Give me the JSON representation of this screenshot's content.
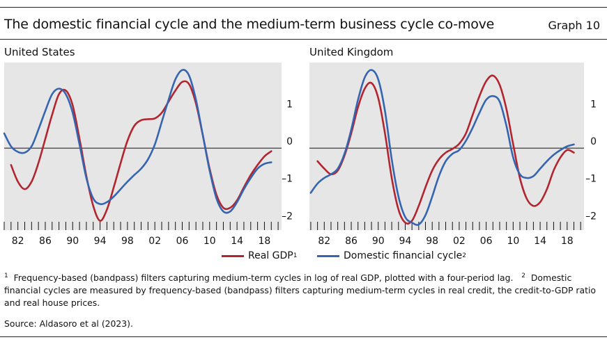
{
  "title": "The domestic financial cycle and the medium-term business cycle co-move",
  "graph_label": "Graph 10",
  "legend": {
    "real_gdp": "Real GDP",
    "real_gdp_note": "1",
    "financial_cycle": "Domestic financial cycle",
    "financial_cycle_note": "2"
  },
  "footnote": {
    "n1": "1",
    "t1": "Frequency-based (bandpass) filters capturing medium-term cycles in log of real GDP, plotted with a four-period lag.",
    "n2": "2",
    "t2": "Domestic financial cycles are measured by frequency-based (bandpass) filters capturing medium-term cycles in real credit, the credit-to-GDP ratio and real house prices."
  },
  "source": "Source: Aldasoro et al (2023).",
  "colors": {
    "real_gdp": "#b3252e",
    "financial_cycle": "#3564b0",
    "background": "#e6e6e6",
    "zero_line": "#111111"
  },
  "chart_data": [
    {
      "type": "line",
      "title": "United States",
      "xlim": [
        1980,
        2020.5
      ],
      "ylim": [
        -2.2,
        2.3
      ],
      "y_ticks": [
        -2,
        -1,
        0,
        1
      ],
      "y_tick_labels": [
        "–2",
        "–1",
        "0",
        "1"
      ],
      "x_tick_labels": [
        {
          "x": 1982,
          "label": "82"
        },
        {
          "x": 1986,
          "label": "86"
        },
        {
          "x": 1990,
          "label": "90"
        },
        {
          "x": 1994,
          "label": "94"
        },
        {
          "x": 1998,
          "label": "98"
        },
        {
          "x": 2002,
          "label": "02"
        },
        {
          "x": 2006,
          "label": "06"
        },
        {
          "x": 2010,
          "label": "10"
        },
        {
          "x": 2014,
          "label": "14"
        },
        {
          "x": 2018,
          "label": "18"
        }
      ],
      "x_minor_start": 1980,
      "x_minor_end": 2020,
      "series": [
        {
          "key": "real_gdp",
          "name": "Real GDP",
          "x": [
            1981,
            1982,
            1983,
            1984,
            1985,
            1986,
            1987,
            1988,
            1989,
            1990,
            1991,
            1992,
            1993,
            1994,
            1995,
            1996,
            1997,
            1998,
            1999,
            2000,
            2001,
            2002,
            2003,
            2004,
            2005,
            2006,
            2007,
            2008,
            2009,
            2010,
            2011,
            2012,
            2013,
            2014,
            2015,
            2016,
            2017,
            2018,
            2019
          ],
          "y": [
            -0.45,
            -0.9,
            -1.1,
            -0.9,
            -0.4,
            0.25,
            0.9,
            1.45,
            1.55,
            1.15,
            0.25,
            -0.75,
            -1.55,
            -1.95,
            -1.65,
            -1.05,
            -0.4,
            0.2,
            0.6,
            0.75,
            0.78,
            0.8,
            0.95,
            1.25,
            1.55,
            1.78,
            1.72,
            1.2,
            0.35,
            -0.55,
            -1.25,
            -1.6,
            -1.6,
            -1.4,
            -1.05,
            -0.72,
            -0.45,
            -0.22,
            -0.08
          ]
        },
        {
          "key": "financial_cycle",
          "name": "Domestic financial cycle",
          "x": [
            1980,
            1981,
            1982,
            1983,
            1984,
            1985,
            1986,
            1987,
            1988,
            1989,
            1990,
            1991,
            1992,
            1993,
            1994,
            1995,
            1996,
            1997,
            1998,
            1999,
            2000,
            2001,
            2002,
            2003,
            2004,
            2005,
            2006,
            2007,
            2008,
            2009,
            2010,
            2011,
            2012,
            2013,
            2014,
            2015,
            2016,
            2017,
            2018,
            2019
          ],
          "y": [
            0.4,
            0.05,
            -0.1,
            -0.12,
            0.05,
            0.5,
            1.0,
            1.45,
            1.6,
            1.45,
            0.95,
            0.1,
            -0.8,
            -1.35,
            -1.5,
            -1.45,
            -1.3,
            -1.1,
            -0.9,
            -0.72,
            -0.55,
            -0.3,
            0.1,
            0.7,
            1.3,
            1.85,
            2.1,
            1.95,
            1.3,
            0.35,
            -0.6,
            -1.35,
            -1.7,
            -1.7,
            -1.45,
            -1.1,
            -0.8,
            -0.55,
            -0.42,
            -0.38
          ]
        }
      ]
    },
    {
      "type": "line",
      "title": "United Kingdom",
      "xlim": [
        1979.8,
        2020.5
      ],
      "ylim": [
        -2.2,
        2.3
      ],
      "y_ticks": [
        -2,
        -1,
        0,
        1
      ],
      "y_tick_labels": [
        "–2",
        "–1",
        "0",
        "1"
      ],
      "x_tick_labels": [
        {
          "x": 1982,
          "label": "82"
        },
        {
          "x": 1986,
          "label": "86"
        },
        {
          "x": 1990,
          "label": "90"
        },
        {
          "x": 1994,
          "label": "94"
        },
        {
          "x": 1998,
          "label": "98"
        },
        {
          "x": 2002,
          "label": "02"
        },
        {
          "x": 2006,
          "label": "06"
        },
        {
          "x": 2010,
          "label": "10"
        },
        {
          "x": 2014,
          "label": "14"
        },
        {
          "x": 2018,
          "label": "18"
        }
      ],
      "x_minor_start": 1980,
      "x_minor_end": 2020,
      "series": [
        {
          "key": "real_gdp",
          "name": "Real GDP",
          "x": [
            1981,
            1982,
            1983,
            1984,
            1985,
            1986,
            1987,
            1988,
            1989,
            1990,
            1991,
            1992,
            1993,
            1994,
            1995,
            1996,
            1997,
            1998,
            1999,
            2000,
            2001,
            2002,
            2003,
            2004,
            2005,
            2006,
            2007,
            2008,
            2009,
            2010,
            2011,
            2012,
            2013,
            2014,
            2015,
            2016,
            2017,
            2018,
            2019
          ],
          "y": [
            -0.35,
            -0.55,
            -0.7,
            -0.6,
            -0.2,
            0.4,
            1.1,
            1.6,
            1.75,
            1.35,
            0.4,
            -0.8,
            -1.65,
            -2.0,
            -1.95,
            -1.55,
            -1.05,
            -0.6,
            -0.3,
            -0.12,
            -0.02,
            0.12,
            0.4,
            0.9,
            1.4,
            1.8,
            1.95,
            1.7,
            1.05,
            0.1,
            -0.8,
            -1.35,
            -1.55,
            -1.45,
            -1.1,
            -0.6,
            -0.25,
            -0.05,
            -0.12
          ]
        },
        {
          "key": "financial_cycle",
          "name": "Domestic financial cycle",
          "x": [
            1980,
            1981,
            1982,
            1983,
            1984,
            1985,
            1986,
            1987,
            1988,
            1989,
            1990,
            1991,
            1992,
            1993,
            1994,
            1995,
            1996,
            1997,
            1998,
            1999,
            2000,
            2001,
            2002,
            2003,
            2004,
            2005,
            2006,
            2007,
            2008,
            2009,
            2010,
            2011,
            2012,
            2013,
            2014,
            2015,
            2016,
            2017,
            2018,
            2019
          ],
          "y": [
            -1.2,
            -0.95,
            -0.8,
            -0.7,
            -0.55,
            -0.15,
            0.5,
            1.3,
            1.9,
            2.1,
            1.85,
            1.0,
            -0.3,
            -1.3,
            -1.85,
            -2.0,
            -2.05,
            -1.8,
            -1.3,
            -0.75,
            -0.35,
            -0.15,
            -0.05,
            0.2,
            0.55,
            0.95,
            1.3,
            1.4,
            1.25,
            0.6,
            -0.25,
            -0.7,
            -0.8,
            -0.75,
            -0.55,
            -0.35,
            -0.18,
            -0.05,
            0.05,
            0.1
          ]
        }
      ]
    }
  ]
}
